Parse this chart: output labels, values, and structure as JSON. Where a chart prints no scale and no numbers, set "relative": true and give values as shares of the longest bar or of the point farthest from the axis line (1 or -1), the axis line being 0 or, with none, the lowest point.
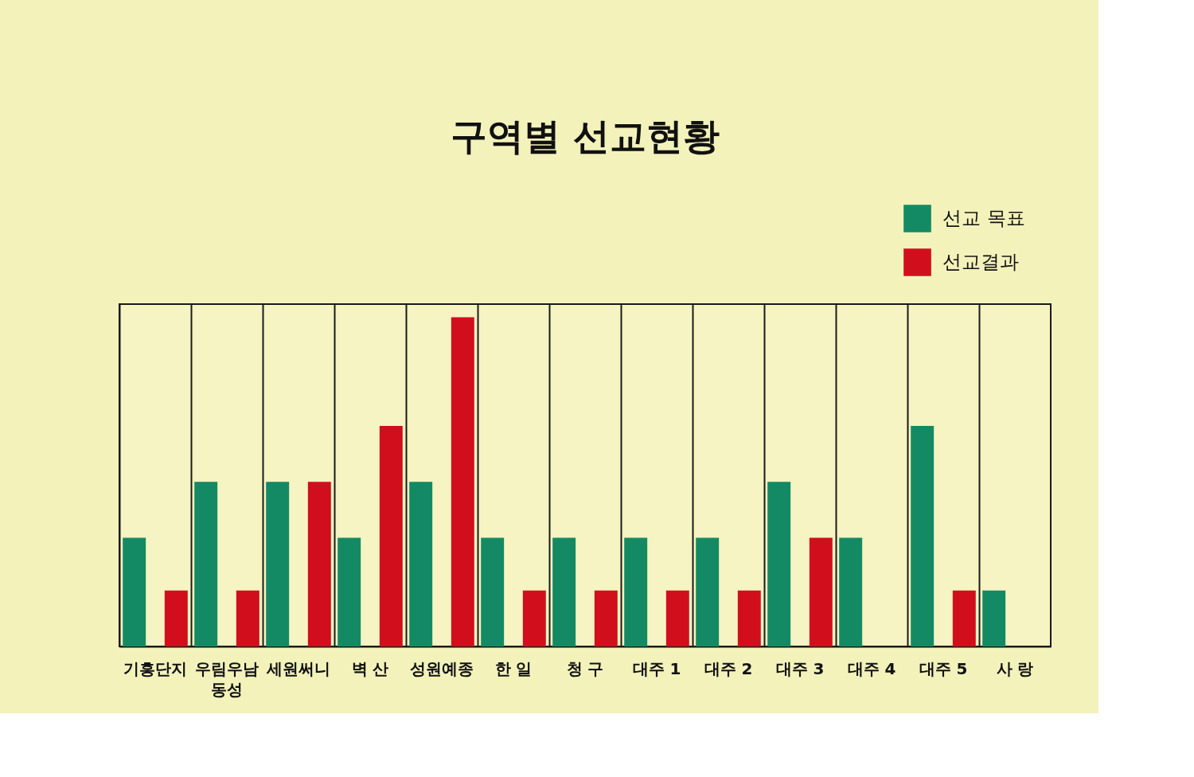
{
  "chart_data": {
    "type": "bar",
    "title": "구역별 선교현황",
    "categories": [
      "기흥단지",
      "우림우남\n동성",
      "세원써니",
      "벽 산",
      "성원예종",
      "한 일",
      "청 구",
      "대주 1",
      "대주 2",
      "대주 3",
      "대주 4",
      "대주 5",
      "사 랑"
    ],
    "relative": true,
    "series": [
      {
        "name": "선교 목표",
        "color": "#138a63",
        "values": [
          0.33,
          0.5,
          0.5,
          0.33,
          0.5,
          0.33,
          0.33,
          0.33,
          0.33,
          0.5,
          0.33,
          0.67,
          0.17
        ]
      },
      {
        "name": "선교결과",
        "color": "#d10f1c",
        "values": [
          0.17,
          0.17,
          0.5,
          0.67,
          1,
          0.17,
          0.17,
          0.17,
          0.17,
          0.33,
          null,
          0.17,
          null
        ]
      }
    ],
    "grid": "x",
    "legend": "top right"
  }
}
